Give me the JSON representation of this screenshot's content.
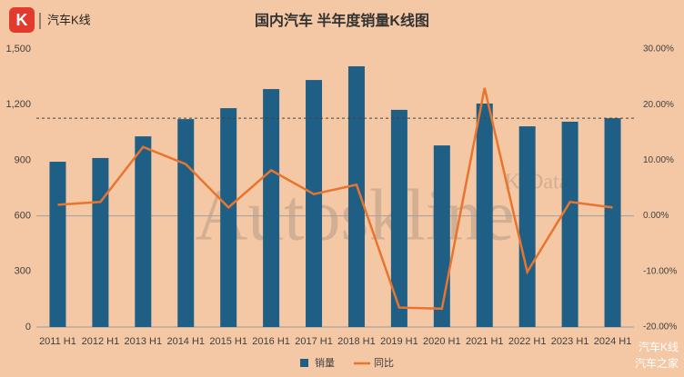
{
  "chart_data": {
    "type": "bar_line",
    "title": "国内汽车 半年度销量K线图",
    "logo_icon": "K",
    "logo_text": "汽车K线",
    "watermark": "Autoskline",
    "watermark_sub": "K·Data",
    "footer_lines": [
      "汽车K线",
      "汽车之家"
    ],
    "categories": [
      "2011 H1",
      "2012 H1",
      "2013 H1",
      "2014 H1",
      "2015 H1",
      "2016 H1",
      "2017 H1",
      "2018 H1",
      "2019 H1",
      "2020 H1",
      "2021 H1",
      "2022 H1",
      "2023 H1",
      "2024 H1"
    ],
    "series": [
      {
        "name": "销量",
        "type": "bar",
        "color": "#1f5f86",
        "values": [
          892,
          912,
          1029,
          1122,
          1181,
          1284,
          1333,
          1407,
          1172,
          980,
          1206,
          1083,
          1108,
          1127
        ]
      },
      {
        "name": "同比",
        "type": "line",
        "axis": "y2",
        "color": "#e8742e",
        "values": [
          2.0,
          2.5,
          12.4,
          9.3,
          1.5,
          8.2,
          3.9,
          5.6,
          -16.5,
          -16.7,
          23.0,
          -10.1,
          2.5,
          1.5
        ]
      }
    ],
    "reference_line": 1127,
    "ylim": [
      0,
      1500
    ],
    "yticks": [
      0,
      300,
      600,
      900,
      {
        "value": 1200,
        "label": "1,200"
      },
      {
        "value": 1500,
        "label": "1,500"
      }
    ],
    "y2lim": [
      -20,
      30
    ],
    "y2ticks": [
      {
        "value": -20,
        "label": "-20.00%"
      },
      {
        "value": -10,
        "label": "-10.00%"
      },
      {
        "value": 0,
        "label": "0.00%"
      },
      {
        "value": 10,
        "label": "10.00%"
      },
      {
        "value": 20,
        "label": "20.00%"
      },
      {
        "value": 30,
        "label": "30.00%"
      }
    ]
  }
}
